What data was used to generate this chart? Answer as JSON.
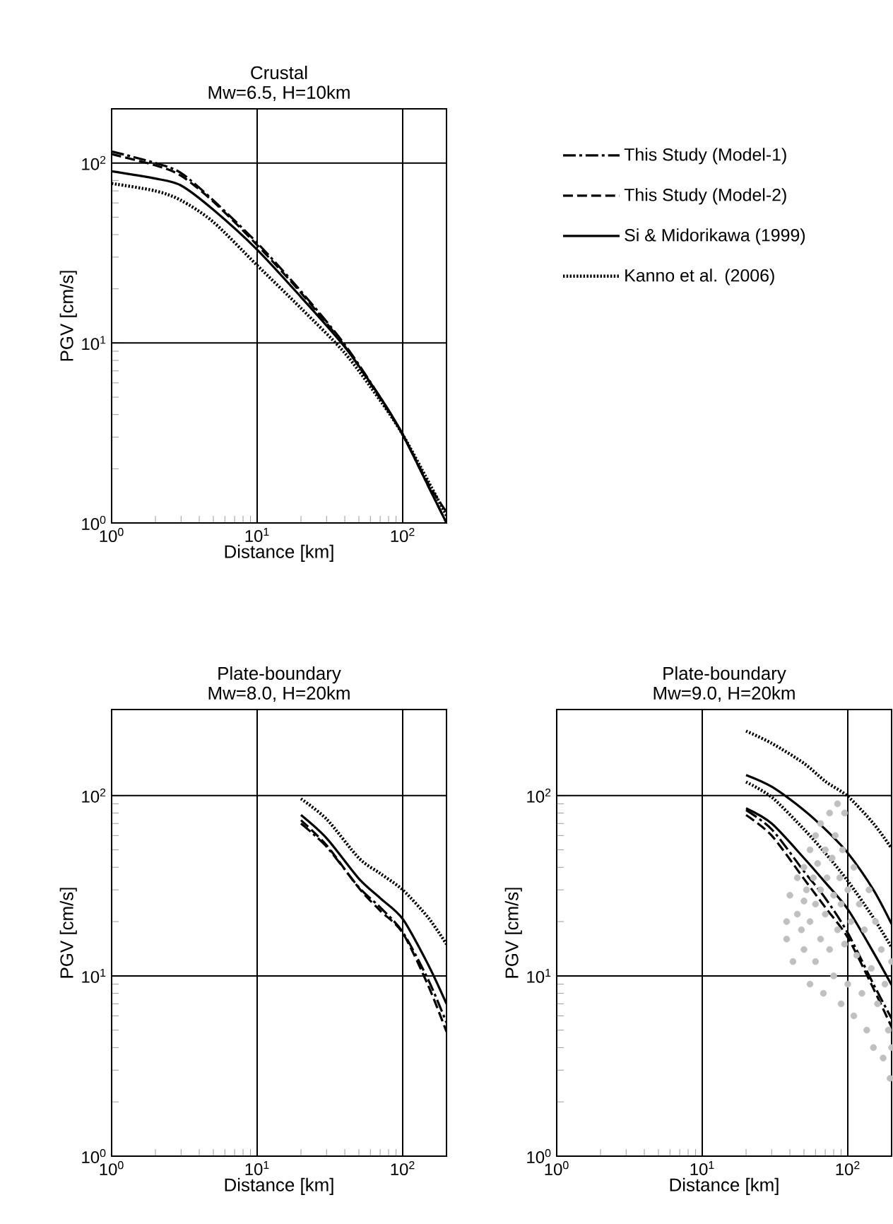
{
  "chart_data": [
    {
      "type": "line",
      "title": "Crustal",
      "subtitle": "Mw=6.5, H=10km",
      "xlabel": "Distance [km]",
      "ylabel": "PGV [cm/s]",
      "log": "xy",
      "grid": true,
      "legend": "right",
      "xlim": [
        1,
        200
      ],
      "ylim": [
        1,
        200
      ],
      "xticks": [
        {
          "value": 1,
          "label": "10$^{0}$"
        },
        {
          "value": 10,
          "label": "10$^{1}$"
        },
        {
          "value": 100,
          "label": "10$^{2}$"
        }
      ],
      "yticks": [
        {
          "value": 1,
          "label": "10$^{0}$"
        },
        {
          "value": 10,
          "label": "10$^{1}$"
        },
        {
          "value": 100,
          "label": "10$^{2}$"
        }
      ],
      "x": [
        1,
        2,
        3,
        5,
        10,
        20,
        40,
        70,
        100,
        150,
        200
      ],
      "series": [
        {
          "name": "This Study (Model-1)",
          "color": "#000000",
          "line_style": "dashdot",
          "values": [
            116,
            100,
            88,
            62,
            36,
            19.4,
            9.8,
            5.0,
            3.1,
            1.6,
            1.0
          ]
        },
        {
          "name": "This Study (Model-2)",
          "color": "#000000",
          "line_style": "dashed",
          "values": [
            112,
            97,
            85,
            61,
            35,
            19,
            9.6,
            4.9,
            3.1,
            1.65,
            1.15
          ]
        },
        {
          "name": "Si & Midorikawa (1999)",
          "color": "#000000",
          "line_style": "solid",
          "values": [
            90,
            82,
            75,
            55,
            33,
            18,
            9.5,
            5.0,
            3.1,
            1.6,
            1.0
          ]
        },
        {
          "name": "Kanno et al. (2006)",
          "color": "#000000",
          "line_style": "dotted",
          "values": [
            77,
            70,
            62,
            47,
            27,
            15.6,
            8.8,
            4.8,
            3.1,
            1.7,
            1.1
          ]
        }
      ]
    },
    {
      "type": "line",
      "title": "Plate-boundary",
      "subtitle": "Mw=8.0, H=20km",
      "xlabel": "Distance [km]",
      "ylabel": "PGV [cm/s]",
      "log": "xy",
      "grid": true,
      "xlim": [
        1,
        200
      ],
      "ylim": [
        1,
        300
      ],
      "xticks": [
        {
          "value": 1,
          "label": "10$^{0}$"
        },
        {
          "value": 10,
          "label": "10$^{1}$"
        },
        {
          "value": 100,
          "label": "10$^{2}$"
        }
      ],
      "yticks": [
        {
          "value": 1,
          "label": "10$^{0}$"
        },
        {
          "value": 10,
          "label": "10$^{1}$"
        },
        {
          "value": 100,
          "label": "10$^{2}$"
        }
      ],
      "x": [
        20,
        30,
        50,
        70,
        100,
        150,
        200
      ],
      "series": [
        {
          "color": "#000000",
          "line_style": "dashdot",
          "values": [
            70,
            52,
            31,
            24,
            17.5,
            9.5,
            5.5
          ]
        },
        {
          "color": "#000000",
          "line_style": "dashed",
          "values": [
            73,
            53,
            30.7,
            23,
            17.3,
            8.8,
            4.9
          ]
        },
        {
          "color": "#000000",
          "line_style": "solid",
          "values": [
            78,
            58,
            34.6,
            27,
            20.7,
            11.5,
            7.0
          ]
        },
        {
          "color": "#000000",
          "line_style": "dotted",
          "values": [
            96,
            74,
            45,
            37,
            30,
            21,
            15
          ]
        }
      ]
    },
    {
      "type": "line",
      "title": "Plate-boundary",
      "subtitle": "Mw=9.0, H=20km",
      "xlabel": "Distance [km]",
      "ylabel": "PGV [cm/s]",
      "log": "xy",
      "grid": true,
      "xlim": [
        1,
        200
      ],
      "ylim": [
        1,
        300
      ],
      "xticks": [
        {
          "value": 1,
          "label": "10$^{0}$"
        },
        {
          "value": 10,
          "label": "10$^{1}$"
        },
        {
          "value": 100,
          "label": "10$^{2}$"
        }
      ],
      "yticks": [
        {
          "value": 1,
          "label": "10$^{0}$"
        },
        {
          "value": 10,
          "label": "10$^{1}$"
        },
        {
          "value": 100,
          "label": "10$^{2}$"
        }
      ],
      "x": [
        20,
        30,
        50,
        70,
        100,
        150,
        200
      ],
      "series": [
        {
          "type": "scatter",
          "marker": "circle",
          "color": "#c0c0c0",
          "x": [
            38,
            38,
            40,
            42,
            45,
            45,
            48,
            50,
            50,
            50,
            52,
            55,
            55,
            55,
            58,
            60,
            60,
            60,
            62,
            65,
            65,
            65,
            68,
            70,
            70,
            72,
            75,
            75,
            78,
            80,
            80,
            82,
            85,
            85,
            88,
            90,
            90,
            92,
            95,
            95,
            100,
            100,
            105,
            110,
            110,
            115,
            120,
            125,
            130,
            135,
            140,
            145,
            150,
            155,
            160,
            170,
            175,
            180,
            190,
            195,
            200,
            200
          ],
          "values": [
            20,
            16,
            28,
            12,
            35,
            22,
            18,
            40,
            26,
            14,
            30,
            50,
            20,
            9,
            35,
            60,
            25,
            12,
            42,
            70,
            30,
            16,
            8,
            50,
            22,
            35,
            80,
            14,
            45,
            28,
            10,
            60,
            18,
            90,
            35,
            7,
            25,
            50,
            15,
            80,
            30,
            9,
            20,
            40,
            6,
            13,
            25,
            8,
            18,
            5,
            30,
            11,
            4,
            20,
            7,
            14,
            3.5,
            9,
            5,
            2.7,
            12,
            4
          ]
        },
        {
          "color": "#000000",
          "line_style": "dashdot",
          "values": [
            83,
            65,
            38,
            27,
            17.3,
            9.0,
            5.8
          ]
        },
        {
          "color": "#000000",
          "line_style": "dashed",
          "values": [
            78,
            60,
            34.5,
            24,
            16.3,
            8.5,
            5.2
          ]
        },
        {
          "color": "#000000",
          "line_style": "solid",
          "values": [
            85,
            70,
            45,
            33,
            23.4,
            13.5,
            8.9
          ]
        },
        {
          "color": "#000000",
          "line_style": "dotted",
          "values": [
            119,
            98,
            65,
            48,
            33.6,
            21,
            14.4
          ]
        },
        {
          "color": "#000000",
          "line_style": "solid",
          "values": [
            130,
            112,
            83,
            65,
            48,
            30,
            19.4
          ]
        },
        {
          "color": "#000000",
          "line_style": "dotted",
          "values": [
            228,
            195,
            151,
            120,
            99,
            70,
            51
          ]
        }
      ]
    }
  ]
}
